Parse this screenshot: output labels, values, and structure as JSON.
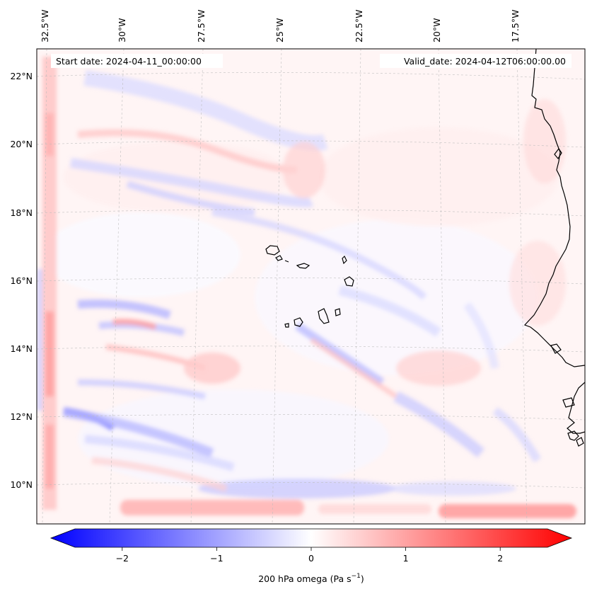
{
  "header": {
    "start_date": "Start date: 2024-04-11_00:00:00",
    "valid_date": "Valid_date: 2024-04-12T06:00:00.00"
  },
  "lon_labels": [
    "32.5°W",
    "30°W",
    "27.5°W",
    "25°W",
    "22.5°W",
    "20°W",
    "17.5°W"
  ],
  "lat_labels": [
    "22°N",
    "20°N",
    "18°N",
    "16°N",
    "14°N",
    "12°N",
    "10°N"
  ],
  "colorbar": {
    "label_main": "200 hPa omega (Pa s",
    "label_exp": "−1",
    "label_close": ")",
    "ticks": [
      "−2",
      "−1",
      "0",
      "1",
      "2"
    ],
    "tick_values": [
      -2,
      -1,
      0,
      1,
      2
    ],
    "range": [
      -2.75,
      2.75
    ],
    "cmap": "bwr",
    "min_color": "#0000ff",
    "mid_color": "#ffffff",
    "max_color": "#ff0000"
  },
  "chart_data": {
    "type": "heatmap",
    "variable": "200 hPa omega",
    "units": "Pa s^-1",
    "projection": "Lambert conformal",
    "lon_range": [
      -33.0,
      -13.5
    ],
    "lat_range": [
      8.5,
      23.0
    ],
    "gridlines": true,
    "coastlines": true,
    "colorbar_position": "bottom",
    "value_range": [
      -2.75,
      2.75
    ]
  }
}
